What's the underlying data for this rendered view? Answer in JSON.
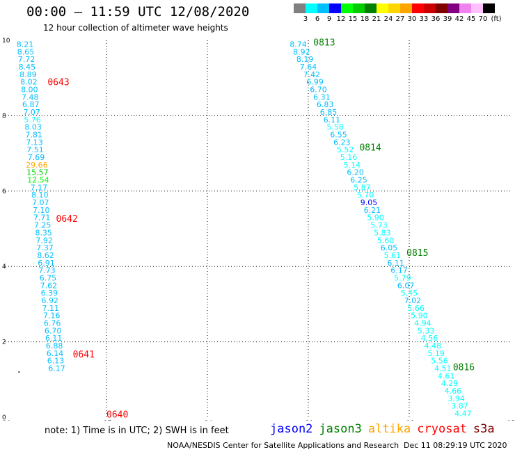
{
  "header": {
    "title": "00:00 – 11:59 UTC 12/08/2020",
    "subtitle": "12 hour collection of altimeter wave heights"
  },
  "colorbar": {
    "unit": "(ft)",
    "bins": [
      {
        "label": "3",
        "color": "#808080"
      },
      {
        "label": "6",
        "color": "#00ffff"
      },
      {
        "label": "9",
        "color": "#00bfff"
      },
      {
        "label": "12",
        "color": "#0000ff"
      },
      {
        "label": "15",
        "color": "#00ff00"
      },
      {
        "label": "18",
        "color": "#00cc00"
      },
      {
        "label": "21",
        "color": "#008000"
      },
      {
        "label": "24",
        "color": "#ffff00"
      },
      {
        "label": "27",
        "color": "#ffd700"
      },
      {
        "label": "30",
        "color": "#ffa500"
      },
      {
        "label": "33",
        "color": "#ff0000"
      },
      {
        "label": "36",
        "color": "#cc0000"
      },
      {
        "label": "39",
        "color": "#800000"
      },
      {
        "label": "42",
        "color": "#800080"
      },
      {
        "label": "45",
        "color": "#ee82ee"
      },
      {
        "label": "70",
        "color": "#ffc0ff"
      },
      {
        "label": "",
        "color": "#000000"
      }
    ]
  },
  "map": {
    "x_range": [
      -30,
      -15
    ],
    "y_range": [
      0,
      10
    ],
    "x_ticks": [
      -30,
      -27,
      -24,
      -21,
      -18,
      -15
    ],
    "y_ticks": [
      0,
      2,
      4,
      6,
      8,
      10
    ],
    "grid": "dotted",
    "tracks": [
      {
        "satellite": "cryosat",
        "time_color": "#ff0000",
        "points": [
          {
            "lon": -29.42,
            "lat": 9.9,
            "v": "8.21",
            "c": "#00bfff"
          },
          {
            "lon": -29.4,
            "lat": 9.7,
            "v": "8.65",
            "c": "#00bfff"
          },
          {
            "lon": -29.38,
            "lat": 9.5,
            "v": "7.72",
            "c": "#00bfff"
          },
          {
            "lon": -29.36,
            "lat": 9.3,
            "v": "8.45",
            "c": "#00bfff"
          },
          {
            "lon": -29.33,
            "lat": 9.1,
            "v": "8.89",
            "c": "#00bfff"
          },
          {
            "lon": -29.31,
            "lat": 8.9,
            "v": "8.02",
            "c": "#00bfff"
          },
          {
            "lon": -29.29,
            "lat": 8.7,
            "v": "8.00",
            "c": "#00bfff"
          },
          {
            "lon": -29.27,
            "lat": 8.5,
            "v": "7.48",
            "c": "#00bfff"
          },
          {
            "lon": -29.25,
            "lat": 8.3,
            "v": "6.87",
            "c": "#00bfff"
          },
          {
            "lon": -29.22,
            "lat": 8.1,
            "v": "7.07",
            "c": "#00bfff"
          },
          {
            "lon": -29.2,
            "lat": 7.9,
            "v": "5.76",
            "c": "#00ffff"
          },
          {
            "lon": -29.18,
            "lat": 7.7,
            "v": "8.03",
            "c": "#00bfff"
          },
          {
            "lon": -29.16,
            "lat": 7.5,
            "v": "7.81",
            "c": "#00bfff"
          },
          {
            "lon": -29.14,
            "lat": 7.3,
            "v": "7.13",
            "c": "#00bfff"
          },
          {
            "lon": -29.12,
            "lat": 7.1,
            "v": "7.51",
            "c": "#00bfff"
          },
          {
            "lon": -29.09,
            "lat": 6.9,
            "v": "7.69",
            "c": "#00bfff"
          },
          {
            "lon": -29.07,
            "lat": 6.7,
            "v": "29.66",
            "c": "#ffa500"
          },
          {
            "lon": -29.05,
            "lat": 6.5,
            "v": "15.57",
            "c": "#00cc00"
          },
          {
            "lon": -29.03,
            "lat": 6.3,
            "v": "12.54",
            "c": "#00ff00"
          },
          {
            "lon": -29.01,
            "lat": 6.1,
            "v": "7.17",
            "c": "#00bfff"
          },
          {
            "lon": -28.98,
            "lat": 5.9,
            "v": "8.10",
            "c": "#00bfff"
          },
          {
            "lon": -28.96,
            "lat": 5.7,
            "v": "7.07",
            "c": "#00bfff"
          },
          {
            "lon": -28.94,
            "lat": 5.5,
            "v": "7.10",
            "c": "#00bfff"
          },
          {
            "lon": -28.92,
            "lat": 5.3,
            "v": "7.71",
            "c": "#00bfff"
          },
          {
            "lon": -28.9,
            "lat": 5.1,
            "v": "7.25",
            "c": "#00bfff"
          },
          {
            "lon": -28.87,
            "lat": 4.9,
            "v": "8.35",
            "c": "#00bfff"
          },
          {
            "lon": -28.85,
            "lat": 4.7,
            "v": "7.92",
            "c": "#00bfff"
          },
          {
            "lon": -28.83,
            "lat": 4.5,
            "v": "7.37",
            "c": "#00bfff"
          },
          {
            "lon": -28.81,
            "lat": 4.3,
            "v": "8.62",
            "c": "#00bfff"
          },
          {
            "lon": -28.79,
            "lat": 4.1,
            "v": "6.91",
            "c": "#00bfff"
          },
          {
            "lon": -28.77,
            "lat": 3.9,
            "v": "7.73",
            "c": "#00bfff"
          },
          {
            "lon": -28.74,
            "lat": 3.7,
            "v": "6.75",
            "c": "#00bfff"
          },
          {
            "lon": -28.72,
            "lat": 3.5,
            "v": "7.62",
            "c": "#00bfff"
          },
          {
            "lon": -28.7,
            "lat": 3.3,
            "v": "6.39",
            "c": "#00bfff"
          },
          {
            "lon": -28.68,
            "lat": 3.1,
            "v": "6.92",
            "c": "#00bfff"
          },
          {
            "lon": -28.66,
            "lat": 2.9,
            "v": "7.11",
            "c": "#00bfff"
          },
          {
            "lon": -28.63,
            "lat": 2.7,
            "v": "7.16",
            "c": "#00bfff"
          },
          {
            "lon": -28.61,
            "lat": 2.5,
            "v": "6.76",
            "c": "#00bfff"
          },
          {
            "lon": -28.59,
            "lat": 2.3,
            "v": "6.70",
            "c": "#00bfff"
          },
          {
            "lon": -28.57,
            "lat": 2.1,
            "v": "6.11",
            "c": "#00bfff"
          },
          {
            "lon": -28.55,
            "lat": 1.9,
            "v": "6.88",
            "c": "#00bfff"
          },
          {
            "lon": -28.53,
            "lat": 1.7,
            "v": "6.14",
            "c": "#00bfff"
          },
          {
            "lon": -28.51,
            "lat": 1.5,
            "v": "6.13",
            "c": "#00bfff"
          },
          {
            "lon": -28.48,
            "lat": 1.3,
            "v": "6.17",
            "c": "#00bfff"
          }
        ],
        "times": [
          {
            "label": "0643",
            "lon": -28.75,
            "lat": 8.88
          },
          {
            "label": "0642",
            "lon": -28.5,
            "lat": 5.26
          },
          {
            "label": "0641",
            "lon": -28.0,
            "lat": 1.66
          },
          {
            "label": "0640",
            "lon": -27.0,
            "lat": 0.06
          }
        ]
      },
      {
        "satellite": "jason3",
        "time_color": "#008000",
        "points": [
          {
            "lon": -21.3,
            "lat": 9.9,
            "v": "8.74",
            "c": "#00bfff"
          },
          {
            "lon": -21.2,
            "lat": 9.7,
            "v": "8.92",
            "c": "#00bfff"
          },
          {
            "lon": -21.1,
            "lat": 9.5,
            "v": "8.19",
            "c": "#00bfff"
          },
          {
            "lon": -21.0,
            "lat": 9.3,
            "v": "7.64",
            "c": "#00bfff"
          },
          {
            "lon": -20.9,
            "lat": 9.1,
            "v": "7.42",
            "c": "#00bfff"
          },
          {
            "lon": -20.8,
            "lat": 8.9,
            "v": "6.99",
            "c": "#00bfff"
          },
          {
            "lon": -20.7,
            "lat": 8.7,
            "v": "6.70",
            "c": "#00bfff"
          },
          {
            "lon": -20.6,
            "lat": 8.5,
            "v": "6.31",
            "c": "#00bfff"
          },
          {
            "lon": -20.5,
            "lat": 8.3,
            "v": "6.83",
            "c": "#00bfff"
          },
          {
            "lon": -20.4,
            "lat": 8.1,
            "v": "6.85",
            "c": "#00bfff"
          },
          {
            "lon": -20.3,
            "lat": 7.9,
            "v": "6.11",
            "c": "#00bfff"
          },
          {
            "lon": -20.2,
            "lat": 7.7,
            "v": "5.58",
            "c": "#00ffff"
          },
          {
            "lon": -20.1,
            "lat": 7.5,
            "v": "6.55",
            "c": "#00bfff"
          },
          {
            "lon": -20.0,
            "lat": 7.3,
            "v": "6.23",
            "c": "#00bfff"
          },
          {
            "lon": -19.9,
            "lat": 7.1,
            "v": "5.52",
            "c": "#00ffff"
          },
          {
            "lon": -19.8,
            "lat": 6.9,
            "v": "5.16",
            "c": "#00ffff"
          },
          {
            "lon": -19.7,
            "lat": 6.7,
            "v": "5.14",
            "c": "#00ffff"
          },
          {
            "lon": -19.6,
            "lat": 6.5,
            "v": "6.20",
            "c": "#00bfff"
          },
          {
            "lon": -19.5,
            "lat": 6.3,
            "v": "6.25",
            "c": "#00bfff"
          },
          {
            "lon": -19.4,
            "lat": 6.1,
            "v": "5.87",
            "c": "#00ffff"
          },
          {
            "lon": -19.3,
            "lat": 5.9,
            "v": "5.70",
            "c": "#00ffff"
          },
          {
            "lon": -19.2,
            "lat": 5.7,
            "v": "9.05",
            "c": "#0000ff"
          },
          {
            "lon": -19.1,
            "lat": 5.5,
            "v": "6.21",
            "c": "#00bfff"
          },
          {
            "lon": -19.0,
            "lat": 5.3,
            "v": "5.90",
            "c": "#00ffff"
          },
          {
            "lon": -18.9,
            "lat": 5.1,
            "v": "5.73",
            "c": "#00ffff"
          },
          {
            "lon": -18.8,
            "lat": 4.9,
            "v": "5.83",
            "c": "#00ffff"
          },
          {
            "lon": -18.7,
            "lat": 4.7,
            "v": "5.60",
            "c": "#00ffff"
          },
          {
            "lon": -18.6,
            "lat": 4.5,
            "v": "6.05",
            "c": "#00bfff"
          },
          {
            "lon": -18.5,
            "lat": 4.3,
            "v": "5.61",
            "c": "#00ffff"
          },
          {
            "lon": -18.4,
            "lat": 4.1,
            "v": "6.11",
            "c": "#00bfff"
          },
          {
            "lon": -18.3,
            "lat": 3.9,
            "v": "6.17",
            "c": "#00bfff"
          },
          {
            "lon": -18.2,
            "lat": 3.7,
            "v": "5.79",
            "c": "#00ffff"
          },
          {
            "lon": -18.1,
            "lat": 3.5,
            "v": "6.07",
            "c": "#00bfff"
          },
          {
            "lon": -18.0,
            "lat": 3.3,
            "v": "5.45",
            "c": "#00ffff"
          },
          {
            "lon": -17.9,
            "lat": 3.1,
            "v": "7.02",
            "c": "#00bfff"
          },
          {
            "lon": -17.8,
            "lat": 2.9,
            "v": "5.66",
            "c": "#00ffff"
          },
          {
            "lon": -17.7,
            "lat": 2.7,
            "v": "5.90",
            "c": "#00ffff"
          },
          {
            "lon": -17.6,
            "lat": 2.5,
            "v": "4.94",
            "c": "#00ffff"
          },
          {
            "lon": -17.5,
            "lat": 2.3,
            "v": "5.33",
            "c": "#00ffff"
          },
          {
            "lon": -17.4,
            "lat": 2.1,
            "v": "4.56",
            "c": "#00ffff"
          },
          {
            "lon": -17.3,
            "lat": 1.9,
            "v": "4.48",
            "c": "#00ffff"
          },
          {
            "lon": -17.2,
            "lat": 1.7,
            "v": "5.19",
            "c": "#00ffff"
          },
          {
            "lon": -17.1,
            "lat": 1.5,
            "v": "5.56",
            "c": "#00ffff"
          },
          {
            "lon": -17.0,
            "lat": 1.3,
            "v": "4.51",
            "c": "#00ffff"
          },
          {
            "lon": -16.9,
            "lat": 1.1,
            "v": "4.61",
            "c": "#00ffff"
          },
          {
            "lon": -16.8,
            "lat": 0.9,
            "v": "4.29",
            "c": "#00ffff"
          },
          {
            "lon": -16.7,
            "lat": 0.7,
            "v": "4.66",
            "c": "#00ffff"
          },
          {
            "lon": -16.6,
            "lat": 0.5,
            "v": "3.94",
            "c": "#00ffff"
          },
          {
            "lon": -16.5,
            "lat": 0.3,
            "v": "3.87",
            "c": "#00ffff"
          },
          {
            "lon": -16.4,
            "lat": 0.1,
            "v": "4.47",
            "c": "#00ffff"
          }
        ],
        "times": [
          {
            "label": "0813",
            "lon": -20.85,
            "lat": 9.94
          },
          {
            "label": "0814",
            "lon": -19.48,
            "lat": 7.15
          },
          {
            "label": "0815",
            "lon": -18.08,
            "lat": 4.35
          },
          {
            "label": "0816",
            "lon": -16.7,
            "lat": 1.32
          }
        ]
      }
    ],
    "markers": [
      {
        "lon": -29.6,
        "lat": 1.2,
        "symbol": "·",
        "color": "#000000"
      }
    ]
  },
  "footer": {
    "note": "note:  1) Time is in UTC; 2) SWH is in feet",
    "legend": [
      {
        "name": "jason2",
        "color": "#0000ff"
      },
      {
        "name": "jason3",
        "color": "#008000"
      },
      {
        "name": "altika",
        "color": "#ffa500"
      },
      {
        "name": "cryosat",
        "color": "#ff0000"
      },
      {
        "name": "s3a",
        "color": "#800000"
      }
    ],
    "credit": "NOAA/NESDIS Center for Satellite Applications and Research",
    "timestamp": "Dec 11 08:29:19 UTC 2020"
  }
}
